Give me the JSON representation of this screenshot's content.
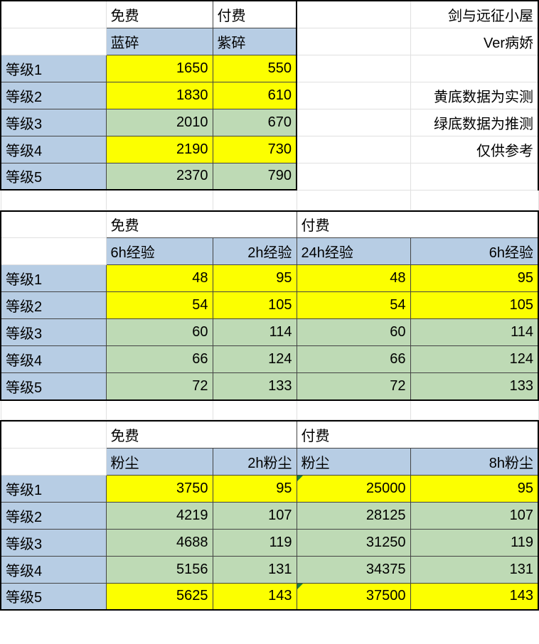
{
  "meta": {
    "title": "剑与远征小屋",
    "author": "Ver病娇",
    "note_yellow": "黄底数据为实测",
    "note_green": "绿底数据为推测",
    "note_ref": "仅供参考"
  },
  "colors": {
    "header_blue": "#b7cde4",
    "measured_yellow": "#fcff00",
    "estimated_green": "#bedab5",
    "grid_light": "#e0e0e0",
    "border_heavy": "#000000",
    "text": "#000000",
    "triangle": "#1e7d3a",
    "background": "#ffffff"
  },
  "typography": {
    "font_size_pt": 15,
    "font_family": "Microsoft YaHei"
  },
  "labels": {
    "free": "免费",
    "paid": "付费",
    "blue_shard": "蓝碎",
    "purple_shard": "紫碎",
    "exp_6h": "6h经验",
    "exp_2h": "2h经验",
    "exp_24h": "24h经验",
    "dust": "粉尘",
    "dust_2h": "2h粉尘",
    "dust_8h": "8h粉尘"
  },
  "levels": [
    "等级1",
    "等级2",
    "等级3",
    "等级4",
    "等级5"
  ],
  "table1": {
    "columns": [
      "免费-蓝碎",
      "付费-紫碎"
    ],
    "rows": [
      {
        "values": [
          1650,
          550
        ],
        "bg": "yellow"
      },
      {
        "values": [
          1830,
          610
        ],
        "bg": "yellow"
      },
      {
        "values": [
          2010,
          670
        ],
        "bg": "green"
      },
      {
        "values": [
          2190,
          730
        ],
        "bg": "yellow"
      },
      {
        "values": [
          2370,
          790
        ],
        "bg": "green"
      }
    ]
  },
  "table2": {
    "columns_free": [
      "6h经验",
      "2h经验"
    ],
    "columns_paid": [
      "24h经验",
      "6h经验"
    ],
    "rows": [
      {
        "free": [
          48,
          95
        ],
        "paid": [
          48,
          95
        ],
        "bg": "yellow"
      },
      {
        "free": [
          54,
          105
        ],
        "paid": [
          54,
          105
        ],
        "bg": "yellow"
      },
      {
        "free": [
          60,
          114
        ],
        "paid": [
          60,
          114
        ],
        "bg": "green"
      },
      {
        "free": [
          66,
          124
        ],
        "paid": [
          66,
          124
        ],
        "bg": "green"
      },
      {
        "free": [
          72,
          133
        ],
        "paid": [
          72,
          133
        ],
        "bg": "green"
      }
    ]
  },
  "table3": {
    "columns_free": [
      "粉尘",
      "2h粉尘"
    ],
    "columns_paid": [
      "粉尘",
      "8h粉尘"
    ],
    "rows": [
      {
        "free": [
          3750,
          95
        ],
        "paid": [
          25000,
          95
        ],
        "bg": "yellow"
      },
      {
        "free": [
          4219,
          107
        ],
        "paid": [
          28125,
          107
        ],
        "bg": "green"
      },
      {
        "free": [
          4688,
          119
        ],
        "paid": [
          31250,
          119
        ],
        "bg": "green"
      },
      {
        "free": [
          5156,
          131
        ],
        "paid": [
          34375,
          131
        ],
        "bg": "green"
      },
      {
        "free": [
          5625,
          143
        ],
        "paid": [
          37500,
          143
        ],
        "bg": "yellow"
      }
    ]
  }
}
